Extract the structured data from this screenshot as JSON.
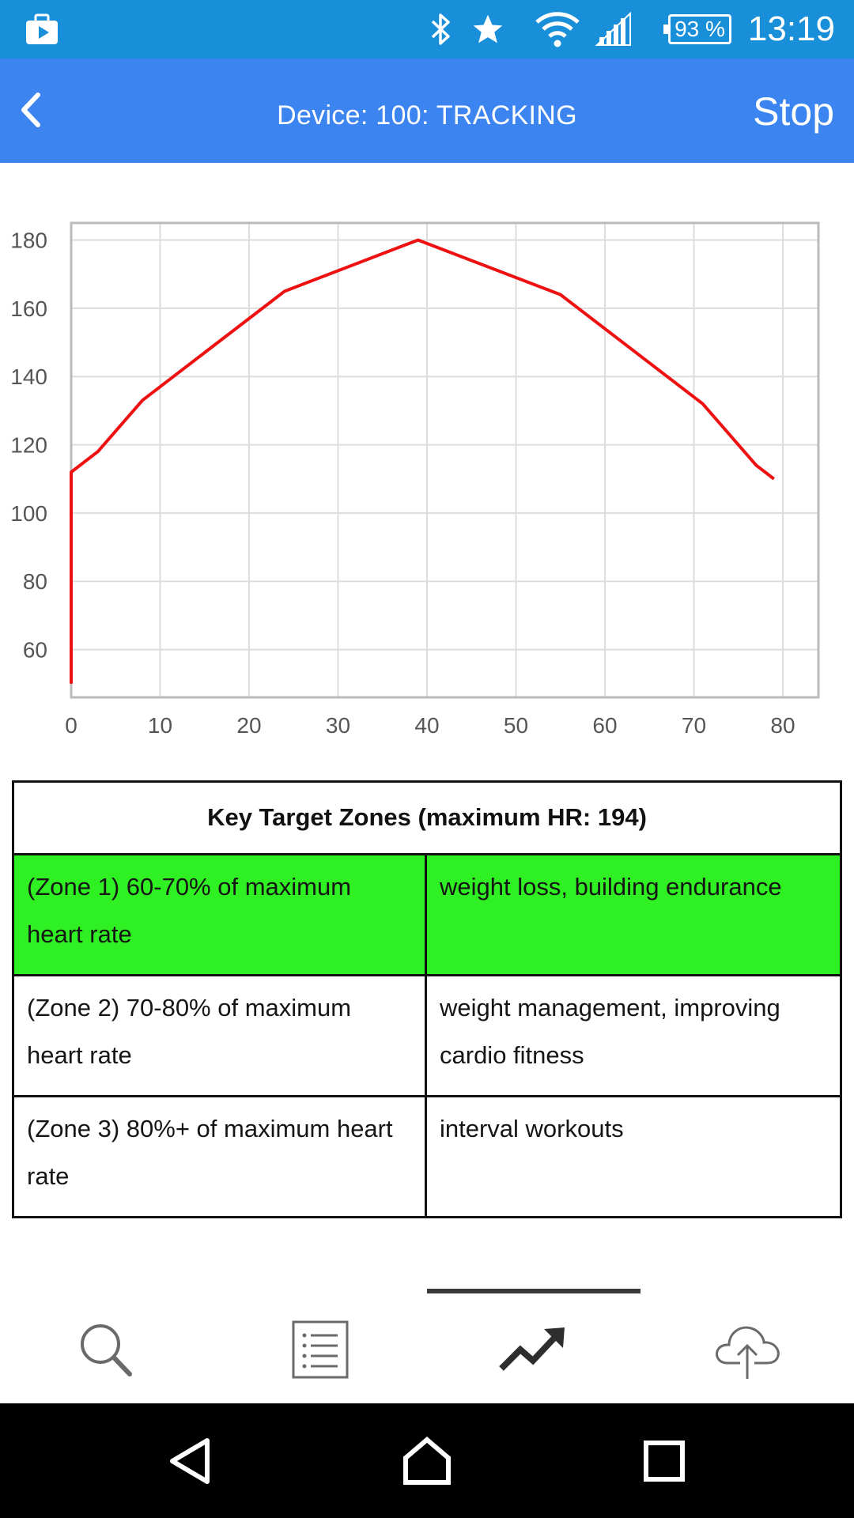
{
  "status_bar": {
    "battery": "93 %",
    "time": "13:19",
    "icons": [
      "briefcase-play-icon",
      "bluetooth-icon",
      "star-icon",
      "wifi-icon",
      "signal-icon",
      "battery-icon"
    ]
  },
  "app_bar": {
    "title": "Device: 100: TRACKING",
    "action": "Stop",
    "back_icon": "chevron-left-icon"
  },
  "chart_data": {
    "type": "line",
    "x": [
      0,
      0,
      3,
      8,
      16,
      24,
      39,
      55,
      71,
      77,
      79
    ],
    "series": [
      {
        "values": [
          50,
          112,
          118,
          133,
          149,
          165,
          180,
          164,
          132,
          114,
          110
        ],
        "color": "#ee1111"
      }
    ],
    "xlim": [
      0,
      84
    ],
    "ylim": [
      46,
      185
    ],
    "x_ticks": [
      0,
      10,
      20,
      30,
      40,
      50,
      60,
      70,
      80
    ],
    "y_ticks": [
      60,
      80,
      100,
      120,
      140,
      160,
      180
    ],
    "grid": true
  },
  "zones_table": {
    "title": "Key Target Zones (maximum HR: 194)",
    "rows": [
      {
        "zone": "(Zone 1) 60-70% of maximum heart rate",
        "benefit": "weight loss, building endurance",
        "active": true
      },
      {
        "zone": "(Zone 2) 70-80% of maximum heart rate",
        "benefit": "weight management, improving cardio fitness",
        "active": false
      },
      {
        "zone": "(Zone 3) 80%+ of maximum heart rate",
        "benefit": "interval workouts",
        "active": false
      }
    ]
  },
  "tabs": [
    {
      "icon": "search-icon"
    },
    {
      "icon": "list-icon"
    },
    {
      "icon": "trending-up-icon",
      "selected": true
    },
    {
      "icon": "cloud-upload-icon"
    }
  ],
  "nav_bar": {
    "icons": [
      "back-triangle-icon",
      "home-icon",
      "recents-square-icon"
    ]
  },
  "colors": {
    "status_bar": "#1a8fd9",
    "app_bar": "#3c84f0",
    "line": "#ee1111",
    "active_zone": "#2ff022"
  }
}
